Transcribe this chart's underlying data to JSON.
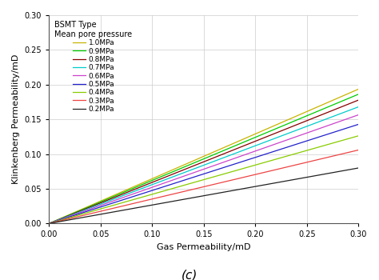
{
  "title_line1": "BSMT Type",
  "title_line2": "Mean pore pressure",
  "xlabel": "Gas Permeability/mD",
  "ylabel": "Klinkenberg Permeability/mD",
  "caption": "(c)",
  "xlim": [
    0,
    0.3
  ],
  "ylim": [
    0,
    0.3
  ],
  "xticks": [
    0,
    0.05,
    0.1,
    0.15,
    0.2,
    0.25,
    0.3
  ],
  "yticks": [
    0,
    0.05,
    0.1,
    0.15,
    0.2,
    0.25,
    0.3
  ],
  "pressures": [
    1.0,
    0.9,
    0.8,
    0.7,
    0.6,
    0.5,
    0.4,
    0.3,
    0.2
  ],
  "labels": [
    "1.0MPa",
    "0.9MPa",
    "0.8MPa",
    "0.7MPa",
    "0.6MPa",
    "0.5MPa",
    "0.4MPa",
    "0.3MPa",
    "0.2MPa"
  ],
  "colors": [
    "#c8b400",
    "#00cc00",
    "#880000",
    "#00cccc",
    "#cc44cc",
    "#2222cc",
    "#88cc00",
    "#ee4444",
    "#222222"
  ],
  "b_klinkenberg": 0.55,
  "background_color": "#ffffff",
  "grid_color": "#cccccc",
  "legend_fontsize": 6.5,
  "axis_fontsize": 8,
  "tick_fontsize": 7,
  "caption_fontsize": 11,
  "linewidth": 0.9
}
